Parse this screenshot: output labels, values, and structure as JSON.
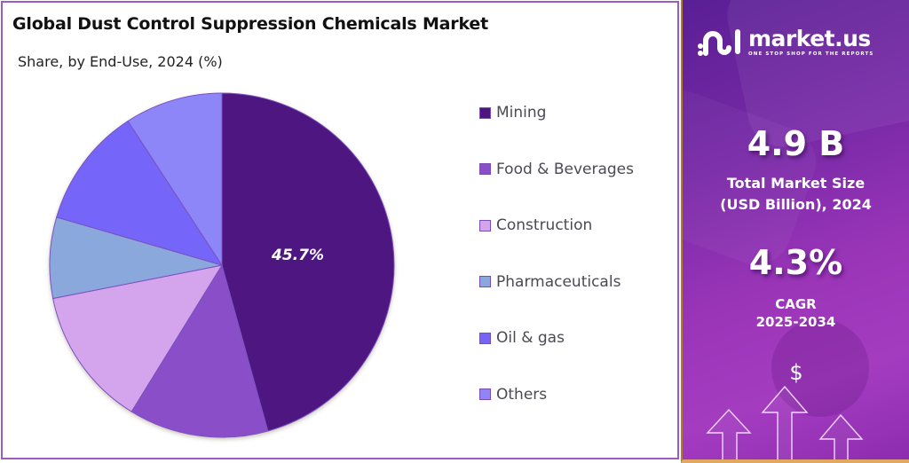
{
  "header": {
    "title": "Global Dust Control Suppression Chemicals Market",
    "subtitle": "Share, by End-Use, 2024 (%)"
  },
  "chart_data": {
    "type": "pie",
    "title": "Global Dust Control Suppression Chemicals Market",
    "subtitle": "Share, by End-Use, 2024 (%)",
    "categories": [
      "Mining",
      "Food & Beverages",
      "Construction",
      "Pharmaceuticals",
      "Oil & gas",
      "Others"
    ],
    "values": [
      45.7,
      13.1,
      13.1,
      7.6,
      11.3,
      9.2
    ],
    "colors": [
      "#4e1580",
      "#8a4fc8",
      "#d4a4ec",
      "#8aa8dc",
      "#7465f8",
      "#8c86f8"
    ],
    "data_labels": [
      {
        "category": "Mining",
        "text": "45.7%"
      }
    ],
    "start_angle_deg": 0,
    "direction": "clockwise",
    "legend_position": "right"
  },
  "pie": {
    "label": "45.7%"
  },
  "legend": {
    "items": [
      {
        "label": "Mining",
        "color": "#4e1580"
      },
      {
        "label": "Food & Beverages",
        "color": "#8a4fc8"
      },
      {
        "label": "Construction",
        "color": "#d4a4ec"
      },
      {
        "label": "Pharmaceuticals",
        "color": "#8aa8dc"
      },
      {
        "label": "Oil & gas",
        "color": "#7465f8"
      },
      {
        "label": "Others",
        "color": "#8c86f8"
      }
    ]
  },
  "side_panel": {
    "brand": {
      "name": "market.us",
      "tagline": "ONE STOP SHOP FOR THE REPORTS"
    },
    "market_size": {
      "value": "4.9 B",
      "caption_line1": "Total Market Size",
      "caption_line2": "(USD Billion), 2024"
    },
    "cagr": {
      "value": "4.3%",
      "caption_line1": "CAGR",
      "caption_line2": "2025-2034"
    },
    "icons": {
      "currency_symbol": "$"
    }
  }
}
